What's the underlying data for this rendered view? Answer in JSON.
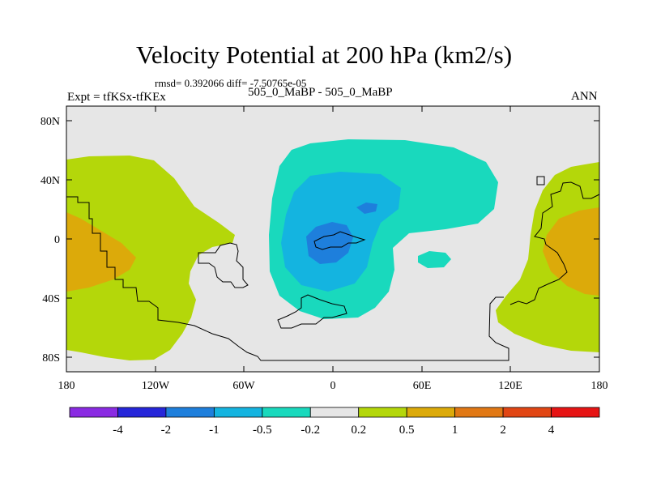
{
  "header": {
    "title": "Velocity Potential at 200 hPa (km2/s)",
    "stats": "rmsd= 0.392066 diff= -7.50765e-05",
    "experiment": "Expt = tfKSx-tfKEx",
    "case": "505_0_MaBP - 505_0_MaBP",
    "season": "ANN"
  },
  "axes": {
    "lat_ticks": [
      "80N",
      "40N",
      "0",
      "40S",
      "80S"
    ],
    "lon_ticks": [
      "180",
      "120W",
      "60W",
      "0",
      "60E",
      "120E",
      "180"
    ]
  },
  "colorbar": {
    "labels": [
      "-4",
      "-2",
      "-1",
      "-0.5",
      "-0.2",
      "0.2",
      "0.5",
      "1",
      "2",
      "4"
    ],
    "colors": [
      "#8a2be2",
      "#2626d9",
      "#1e7fdc",
      "#14b4e0",
      "#19d9bd",
      "#e6e6e6",
      "#b4d70a",
      "#dcaa0a",
      "#e17814",
      "#e14614",
      "#e61414"
    ]
  },
  "palette": {
    "background": "#e6e6e6",
    "cyan": "#19d9bd",
    "light_blue": "#14b4e0",
    "blue": "#1e7fdc",
    "lime": "#b4d70a",
    "orange": "#dcaa0a"
  }
}
